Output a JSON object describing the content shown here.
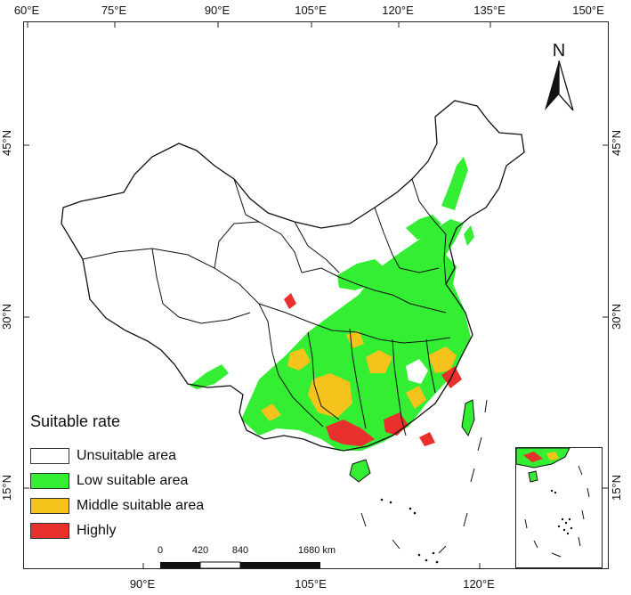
{
  "axes": {
    "top_ticks": [
      "60°E",
      "75°E",
      "90°E",
      "105°E",
      "120°E",
      "135°E",
      "150°E"
    ],
    "bottom_ticks": [
      "90°E",
      "105°E",
      "120°E"
    ],
    "left_ticks": [
      "45°N",
      "30°N",
      "15°N"
    ],
    "right_ticks": [
      "45°N",
      "30°N",
      "15°N"
    ]
  },
  "north_arrow": {
    "label": "N"
  },
  "legend": {
    "title": "Suitable rate",
    "items": [
      {
        "label": "Unsuitable area",
        "color": "#ffffff"
      },
      {
        "label": "Low suitable area",
        "color": "#33ee33"
      },
      {
        "label": "Middle suitable area",
        "color": "#f6c21c"
      },
      {
        "label": "Highly",
        "color": "#e8302c"
      }
    ]
  },
  "scale_bar": {
    "labels": [
      "0",
      "420",
      "840",
      "1680 km"
    ]
  },
  "colors": {
    "border": "#111111",
    "low": "#33ee33",
    "middle": "#f6c21c",
    "high": "#e8302c"
  }
}
